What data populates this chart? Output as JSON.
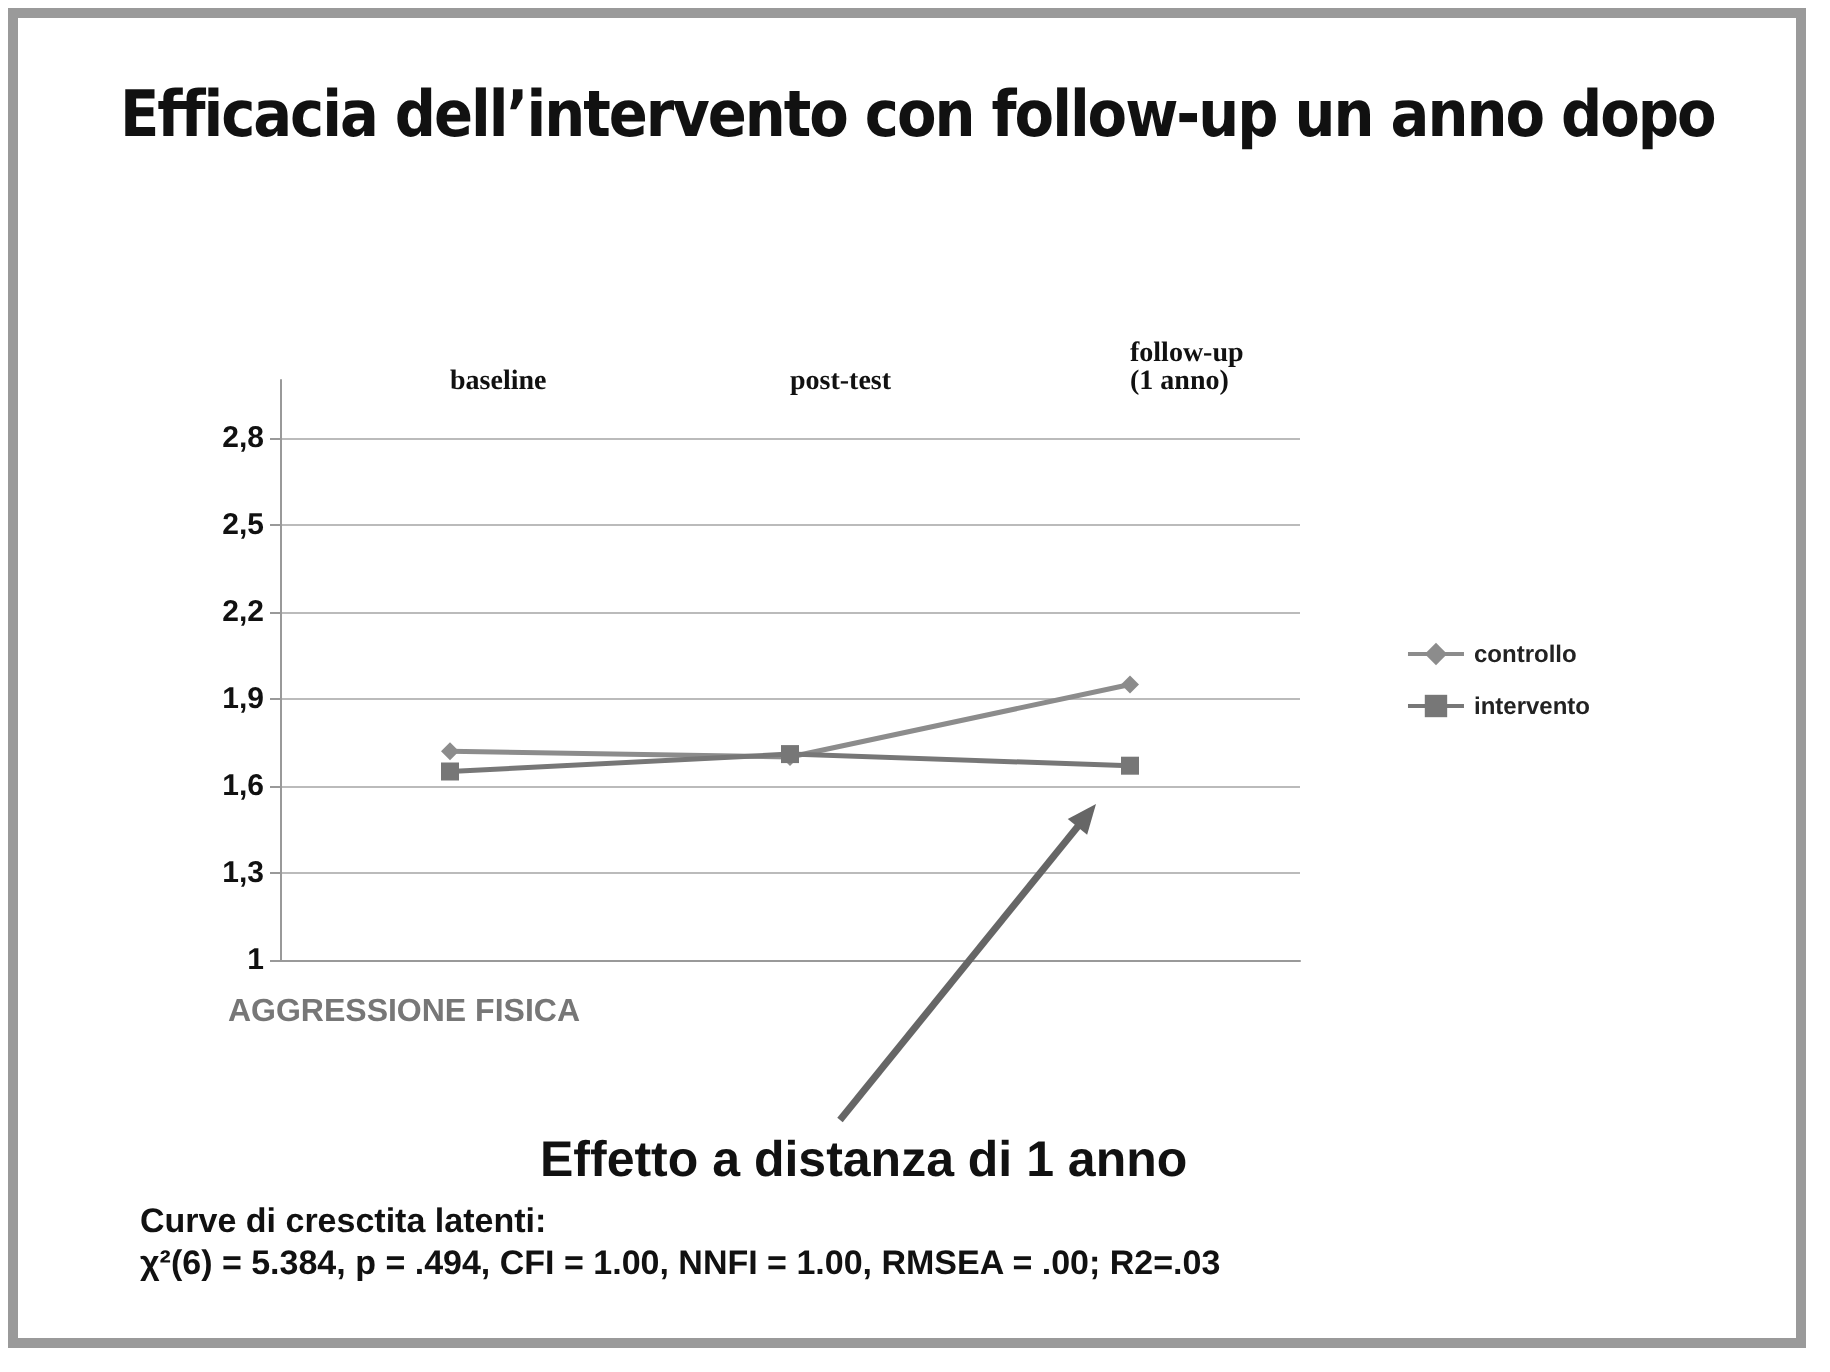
{
  "chart_data": {
    "type": "line",
    "title": "Efficacia dell’intervento con follow-up un anno dopo",
    "xlabel": "AGGRESSIONE FISICA",
    "categories": [
      "baseline",
      "post-test",
      "follow-up\n(1 anno)"
    ],
    "series": [
      {
        "name": "controllo",
        "color": "#8c8c8c",
        "marker": "diamond",
        "values": [
          1.72,
          1.7,
          1.95
        ]
      },
      {
        "name": "intervento",
        "color": "#777777",
        "marker": "square",
        "values": [
          1.65,
          1.71,
          1.67
        ]
      }
    ],
    "ylim": [
      1,
      3
    ],
    "yticks": [
      1,
      {
        "value": 1.3,
        "label": "1,3"
      },
      {
        "value": 1.6,
        "label": "1,6"
      },
      {
        "value": 1.9,
        "label": "1,9"
      },
      {
        "value": 2.2,
        "label": "2,2"
      },
      {
        "value": 2.5,
        "label": "2,5"
      },
      {
        "value": 2.8,
        "label": "2,8"
      }
    ],
    "grid": "y",
    "legend": "right",
    "annotations": [
      "Effetto a distanza di 1 anno",
      "Curve di cresctita latenti:",
      "χ²(6) = 5.384, p = .494, CFI = 1.00, NNFI = 1.00, RMSEA = .00; R2=.03"
    ]
  }
}
